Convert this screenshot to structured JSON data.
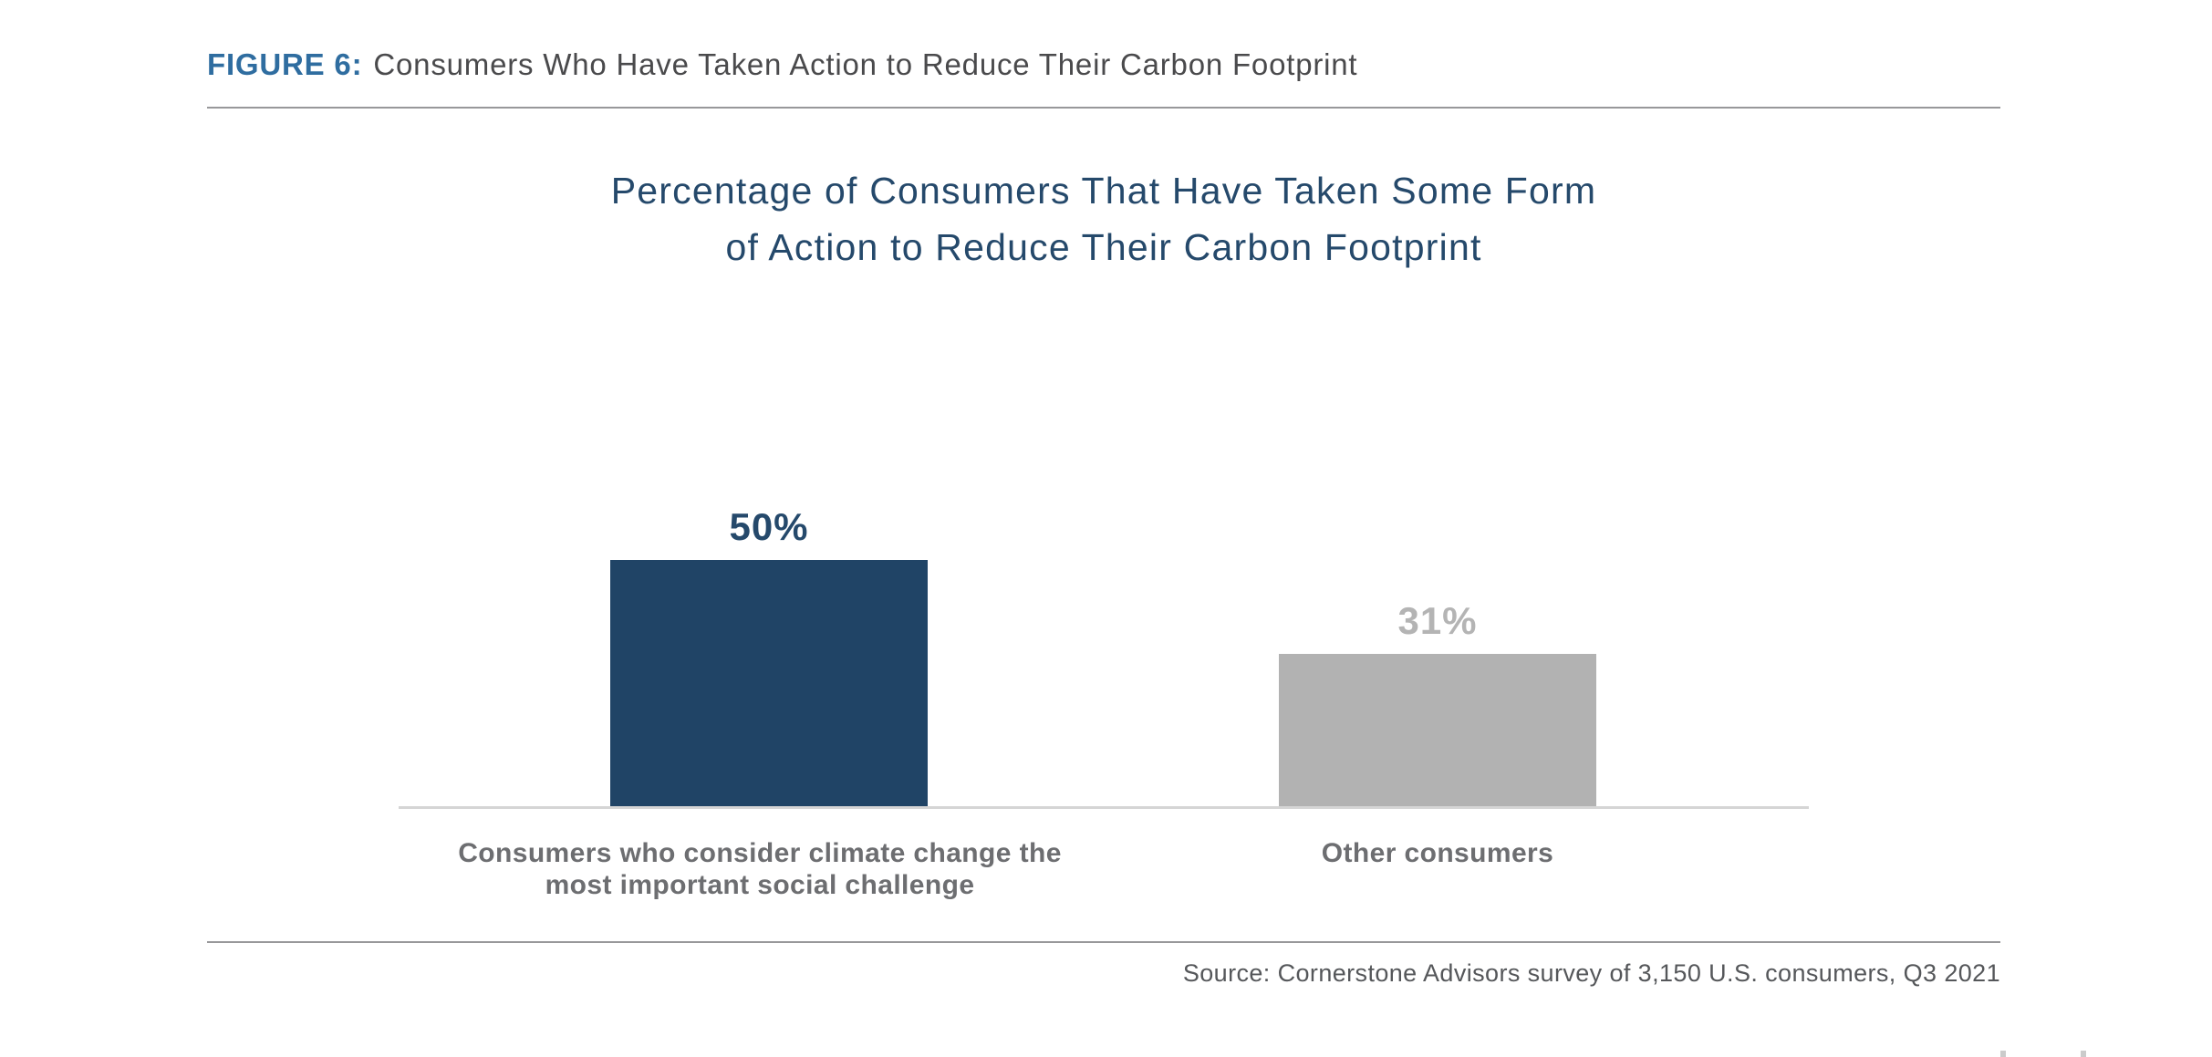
{
  "page": {
    "background": "#FFFFFF"
  },
  "figure_header": {
    "label": "FIGURE 6:",
    "title": "Consumers Who Have Taken Action to Reduce Their Carbon Footprint"
  },
  "chart_data": {
    "type": "bar",
    "title": "Percentage of Consumers That Have Taken Some Form of Action to Reduce Their Carbon Footprint",
    "title_lines": [
      "Percentage of Consumers That Have Taken Some Form",
      "of Action to Reduce Their Carbon Footprint"
    ],
    "categories": [
      "Consumers who consider climate change the most important social challenge",
      "Other consumers"
    ],
    "category_lines": [
      [
        "Consumers who consider climate change the",
        "most important social challenge"
      ],
      [
        "Other consumers",
        ""
      ]
    ],
    "values": [
      50,
      31
    ],
    "value_labels": [
      "50%",
      "31%"
    ],
    "bar_colors": [
      "#204466",
      "#B2B2B2"
    ],
    "value_label_colors": [
      "#25496B",
      "#B4B4B4"
    ],
    "xlabel": "",
    "ylabel": "",
    "ylim": [
      0,
      55
    ],
    "grid": false,
    "legend": "none"
  },
  "source": {
    "text": "Source: Cornerstone Advisors survey of 3,150 U.S. consumers, Q3 2021"
  },
  "colors": {
    "figure_label_blue": "#2F6DA0",
    "header_text": "#4A4A4C",
    "title_navy": "#25496B",
    "bar_navy": "#204466",
    "bar_gray": "#B2B2B2",
    "category_text": "#6D6E71",
    "source_text": "#55575A",
    "rule_gray": "#98989A",
    "axis_baseline": "#D5D5D5"
  }
}
